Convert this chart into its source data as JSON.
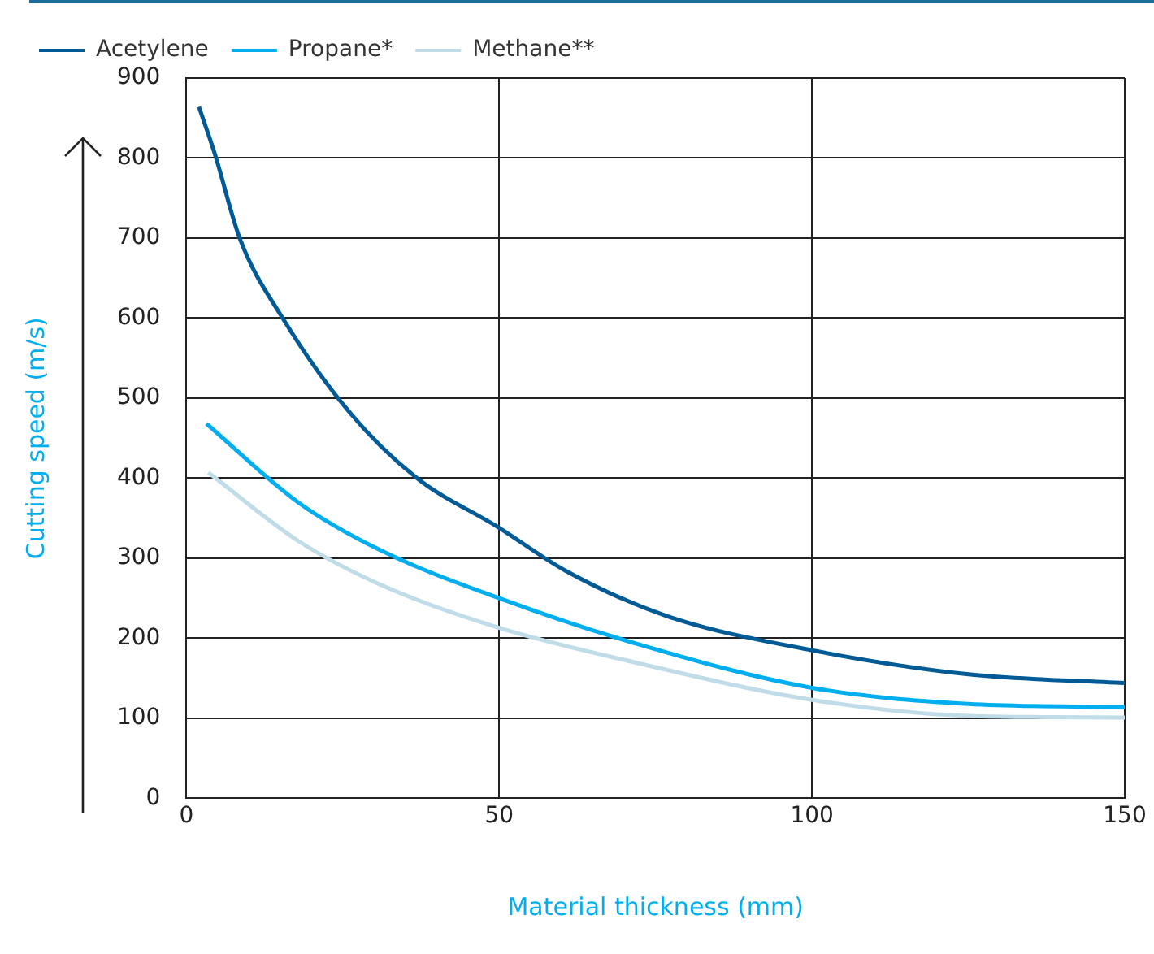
{
  "chart_data": {
    "type": "line",
    "xlabel": "Material thickness (mm)",
    "ylabel": "Cutting speed (m/s)",
    "xlim": [
      0,
      150
    ],
    "xticks": [
      0,
      50,
      100,
      150
    ],
    "ylim": [
      0,
      900
    ],
    "yticks": [
      0,
      100,
      200,
      300,
      400,
      500,
      600,
      700,
      800,
      900
    ],
    "grid": true,
    "legend": "top left",
    "marker": "none",
    "line_style": "solid",
    "series": [
      {
        "name": "Acetylene",
        "color": "#005a96",
        "x": [
          2,
          4.5,
          8.6,
          15.3,
          26,
          36.7,
          50,
          60.7,
          76.7,
          100,
          125,
          150
        ],
        "values": [
          864,
          806,
          698,
          601,
          483,
          401,
          338,
          284,
          228,
          185,
          155,
          144
        ]
      },
      {
        "name": "Propane*",
        "color": "#00aeef",
        "x": [
          3.2,
          18,
          31,
          50,
          71.6,
          100,
          125,
          150
        ],
        "values": [
          468,
          369,
          310,
          250,
          194,
          138,
          118,
          114
        ]
      },
      {
        "name": "Methane**",
        "color": "#c0dce8",
        "x": [
          3.5,
          18,
          31,
          50,
          71.6,
          100,
          125,
          150
        ],
        "values": [
          407,
          321,
          267,
          213,
          170,
          123,
          103,
          101
        ]
      }
    ]
  }
}
